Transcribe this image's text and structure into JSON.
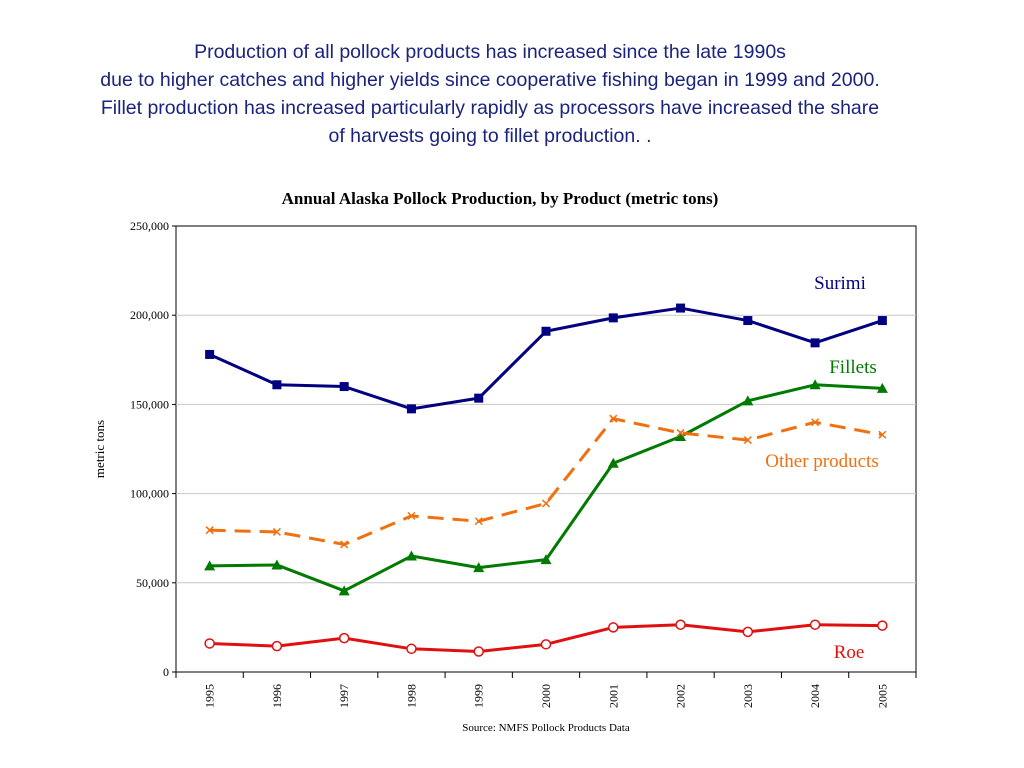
{
  "slide": {
    "headline_lines": [
      "Production of all pollock products has increased since the late 1990s",
      "due to higher catches and higher yields since cooperative fishing began in 1999 and 2000.",
      "Fillet production has increased particularly rapidly as processors have increased the share",
      "of harvests going to fillet production. ."
    ]
  },
  "chart_data": {
    "type": "line",
    "title": "Annual Alaska Pollock Production, by Product (metric tons)",
    "xlabel": "",
    "ylabel": "metric tons",
    "source": "Source:  NMFS Pollock Products Data",
    "ylim": [
      0,
      250000
    ],
    "yticks": [
      0,
      50000,
      100000,
      150000,
      200000,
      250000
    ],
    "ytick_labels": [
      "0",
      "50,000",
      "100,000",
      "150,000",
      "200,000",
      "250,000"
    ],
    "grid": true,
    "legend": "inline-labels",
    "categories": [
      "1995",
      "1996",
      "1997",
      "1998",
      "1999",
      "2000",
      "2001",
      "2002",
      "2003",
      "2004",
      "2005"
    ],
    "series": [
      {
        "name": "Surimi",
        "color": "#000080",
        "marker": "square",
        "dash": "solid",
        "values": [
          178000,
          161000,
          160000,
          147500,
          153500,
          191000,
          198500,
          204000,
          197000,
          184500,
          197000
        ]
      },
      {
        "name": "Fillets",
        "color": "#007a00",
        "marker": "triangle",
        "dash": "solid",
        "values": [
          59500,
          60000,
          45500,
          65000,
          58500,
          63000,
          117000,
          132000,
          152000,
          161000,
          159000
        ]
      },
      {
        "name": "Other products",
        "color": "#f07010",
        "marker": "x",
        "dash": "dashed",
        "values": [
          79500,
          78500,
          71500,
          87500,
          84500,
          94500,
          142000,
          134000,
          130000,
          140000,
          133000
        ]
      },
      {
        "name": "Roe",
        "color": "#e01010",
        "marker": "circle",
        "dash": "solid",
        "values": [
          16000,
          14500,
          19000,
          13000,
          11500,
          15500,
          25000,
          26500,
          22500,
          26500,
          26000
        ]
      }
    ]
  }
}
